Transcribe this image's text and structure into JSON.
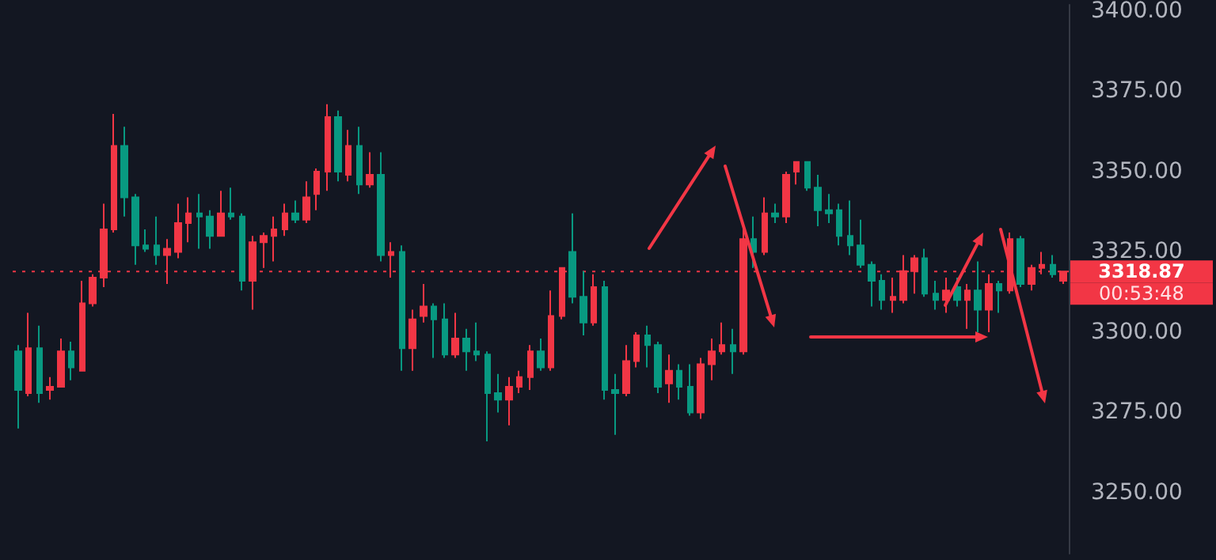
{
  "chart_data": {
    "type": "candlestick",
    "categories": [
      null,
      null,
      null,
      null,
      null,
      null,
      null,
      null,
      null,
      null,
      null,
      null,
      null,
      null,
      null,
      null,
      null,
      null,
      null,
      null,
      null,
      null,
      null,
      null,
      null,
      null,
      null,
      null,
      null,
      null,
      null,
      null,
      null,
      null,
      null,
      null,
      null,
      null,
      null,
      null,
      null,
      null,
      null,
      null,
      null,
      null,
      null,
      null,
      null,
      null,
      null,
      null,
      null,
      null,
      null,
      null,
      null,
      null,
      null,
      null,
      null,
      null,
      null,
      null,
      null,
      null,
      null,
      null,
      null,
      null,
      null,
      null,
      null,
      null,
      null,
      null,
      null,
      null,
      null,
      null,
      null,
      null,
      null,
      null,
      null,
      null,
      null,
      null,
      null,
      null,
      null,
      null,
      null,
      null,
      null,
      null,
      null,
      null,
      null
    ],
    "ohlc": [
      [
        3294,
        3296,
        3270,
        3282
      ],
      [
        3281,
        3306,
        3280,
        3295
      ],
      [
        3295,
        3302,
        3278,
        3281
      ],
      [
        3282,
        3286,
        3279,
        3283
      ],
      [
        3283,
        3298,
        3283,
        3294
      ],
      [
        3294,
        3297,
        3285,
        3289
      ],
      [
        3288,
        3316,
        3288,
        3309
      ],
      [
        3309,
        3318,
        3308,
        3317
      ],
      [
        3317,
        3340,
        3314,
        3332
      ],
      [
        3332,
        3368,
        3331,
        3358
      ],
      [
        3358,
        3364,
        3336,
        3342
      ],
      [
        3342,
        3343,
        3321,
        3327
      ],
      [
        3327,
        3332,
        3325,
        3326
      ],
      [
        3327,
        3336,
        3321,
        3324
      ],
      [
        3324,
        3329,
        3315,
        3326
      ],
      [
        3325,
        3340,
        3323,
        3334
      ],
      [
        3334,
        3342,
        3328,
        3337
      ],
      [
        3337,
        3343,
        3326,
        3336
      ],
      [
        3336,
        3338,
        3326,
        3330
      ],
      [
        3330,
        3344,
        3330,
        3337
      ],
      [
        3337,
        3345,
        3335,
        3336
      ],
      [
        3336,
        3337,
        3313,
        3316
      ],
      [
        3316,
        3330,
        3307,
        3328
      ],
      [
        3328,
        3331,
        3320,
        3330
      ],
      [
        3330,
        3336,
        3322,
        3332
      ],
      [
        3332,
        3340,
        3330,
        3337
      ],
      [
        3337,
        3341,
        3334,
        3335
      ],
      [
        3335,
        3347,
        3334,
        3342
      ],
      [
        3343,
        3351,
        3338,
        3350
      ],
      [
        3350,
        3371,
        3344,
        3367
      ],
      [
        3367,
        3369,
        3347,
        3350
      ],
      [
        3349,
        3363,
        3347,
        3358
      ],
      [
        3358,
        3364,
        3343,
        3346
      ],
      [
        3346,
        3356,
        3345,
        3349
      ],
      [
        3349,
        3356,
        3322,
        3324
      ],
      [
        3324,
        3328,
        3317,
        3325
      ],
      [
        3325,
        3327,
        3288,
        3295
      ],
      [
        3295,
        3307,
        3288,
        3304
      ],
      [
        3305,
        3315,
        3303,
        3308
      ],
      [
        3308,
        3309,
        3292,
        3304
      ],
      [
        3304,
        3309,
        3292,
        3293
      ],
      [
        3293,
        3306,
        3292,
        3298
      ],
      [
        3298,
        3301,
        3288,
        3294
      ],
      [
        3294,
        3303,
        3291,
        3293
      ],
      [
        3293,
        3294,
        3266,
        3281
      ],
      [
        3281,
        3287,
        3275,
        3279
      ],
      [
        3279,
        3286,
        3271,
        3283
      ],
      [
        3283,
        3288,
        3281,
        3286
      ],
      [
        3286,
        3296,
        3282,
        3294
      ],
      [
        3294,
        3298,
        3288,
        3289
      ],
      [
        3289,
        3313,
        3288,
        3305
      ],
      [
        3305,
        3320,
        3304,
        3320
      ],
      [
        3325,
        3337,
        3309,
        3311
      ],
      [
        3311,
        3319,
        3299,
        3303
      ],
      [
        3303,
        3318,
        3302,
        3314
      ],
      [
        3314,
        3316,
        3279,
        3282
      ],
      [
        3282,
        3287,
        3268,
        3281
      ],
      [
        3281,
        3296,
        3280,
        3291
      ],
      [
        3291,
        3300,
        3289,
        3299
      ],
      [
        3299,
        3302,
        3289,
        3296
      ],
      [
        3296,
        3297,
        3281,
        3283
      ],
      [
        3284,
        3293,
        3278,
        3288
      ],
      [
        3288,
        3290,
        3279,
        3283
      ],
      [
        3283,
        3290,
        3274,
        3275
      ],
      [
        3275,
        3292,
        3273,
        3290
      ],
      [
        3290,
        3298,
        3285,
        3294
      ],
      [
        3294,
        3303,
        3293,
        3296
      ],
      [
        3296,
        3301,
        3287,
        3294
      ],
      [
        3294,
        3333,
        3293,
        3329
      ],
      [
        3329,
        3336,
        3320,
        3325
      ],
      [
        3325,
        3342,
        3324,
        3337
      ],
      [
        3337,
        3340,
        3334,
        3336
      ],
      [
        3336,
        3350,
        3334,
        3349
      ],
      [
        3350,
        3353,
        3346,
        3353
      ],
      [
        3353,
        3353,
        3344,
        3345
      ],
      [
        3345,
        3349,
        3333,
        3338
      ],
      [
        3338,
        3343,
        3334,
        3337
      ],
      [
        3338,
        3340,
        3327,
        3330
      ],
      [
        3330,
        3341,
        3324,
        3327
      ],
      [
        3327,
        3335,
        3320,
        3321
      ],
      [
        3321,
        3322,
        3308,
        3316
      ],
      [
        3316,
        3318,
        3307,
        3310
      ],
      [
        3310,
        3317,
        3306,
        3311
      ],
      [
        3310,
        3324,
        3309,
        3319
      ],
      [
        3319,
        3324,
        3312,
        3323
      ],
      [
        3323,
        3326,
        3311,
        3312
      ],
      [
        3312,
        3316,
        3307,
        3310
      ],
      [
        3310,
        3317,
        3306,
        3313
      ],
      [
        3314,
        3317,
        3308,
        3310
      ],
      [
        3310,
        3315,
        3301,
        3313
      ],
      [
        3313,
        3322,
        3300,
        3307
      ],
      [
        3307,
        3318,
        3300,
        3315
      ],
      [
        3315,
        3316,
        3306,
        3313
      ],
      [
        3313,
        3331,
        3312,
        3329
      ],
      [
        3329,
        3330,
        3314,
        3315
      ],
      [
        3315,
        3321,
        3313,
        3320
      ],
      [
        3320,
        3325,
        3318,
        3321
      ],
      [
        3321,
        3324,
        3317,
        3318
      ],
      [
        3316,
        3319,
        3315,
        3318.87
      ]
    ],
    "colors": [
      "#089981",
      "#f23645",
      "#089981",
      "#f23645",
      "#f23645",
      "#089981",
      "#f23645",
      "#f23645",
      "#f23645",
      "#f23645",
      "#089981",
      "#089981",
      "#089981",
      "#089981",
      "#f23645",
      "#f23645",
      "#f23645",
      "#089981",
      "#089981",
      "#f23645",
      "#089981",
      "#089981",
      "#f23645",
      "#f23645",
      "#f23645",
      "#f23645",
      "#089981",
      "#f23645",
      "#f23645",
      "#f23645",
      "#089981",
      "#f23645",
      "#089981",
      "#f23645",
      "#089981",
      "#f23645",
      "#089981",
      "#f23645",
      "#f23645",
      "#089981",
      "#089981",
      "#f23645",
      "#089981",
      "#089981",
      "#089981",
      "#089981",
      "#f23645",
      "#f23645",
      "#f23645",
      "#089981",
      "#f23645",
      "#f23645",
      "#089981",
      "#089981",
      "#f23645",
      "#089981",
      "#089981",
      "#f23645",
      "#f23645",
      "#089981",
      "#089981",
      "#f23645",
      "#089981",
      "#089981",
      "#f23645",
      "#f23645",
      "#f23645",
      "#089981",
      "#f23645",
      "#089981",
      "#f23645",
      "#089981",
      "#f23645",
      "#f23645",
      "#089981",
      "#089981",
      "#089981",
      "#089981",
      "#089981",
      "#089981",
      "#089981",
      "#089981",
      "#f23645",
      "#f23645",
      "#f23645",
      "#089981",
      "#089981",
      "#f23645",
      "#089981",
      "#f23645",
      "#089981",
      "#f23645",
      "#089981",
      "#f23645",
      "#089981",
      "#f23645",
      "#f23645",
      "#089981",
      "#f23645"
    ],
    "ylim": [
      3231,
      3402
    ],
    "yticks": [
      {
        "value": 3250,
        "label": "3250.00"
      },
      {
        "value": 3275,
        "label": "3275.00"
      },
      {
        "value": 3300,
        "label": "3300.00"
      },
      {
        "value": 3325,
        "label": "3325.00"
      },
      {
        "value": 3350,
        "label": "3350.00"
      },
      {
        "value": 3375,
        "label": "3375.00"
      },
      {
        "value": 3400,
        "label": "3400.00"
      }
    ],
    "tick_labels": "y",
    "ref_lines": [
      {
        "axis": "y",
        "value": 3318.87,
        "label": "3318.87",
        "color": "#f23645",
        "line_style": "dotted"
      }
    ],
    "annotations": [
      "00:53:48"
    ]
  }
}
